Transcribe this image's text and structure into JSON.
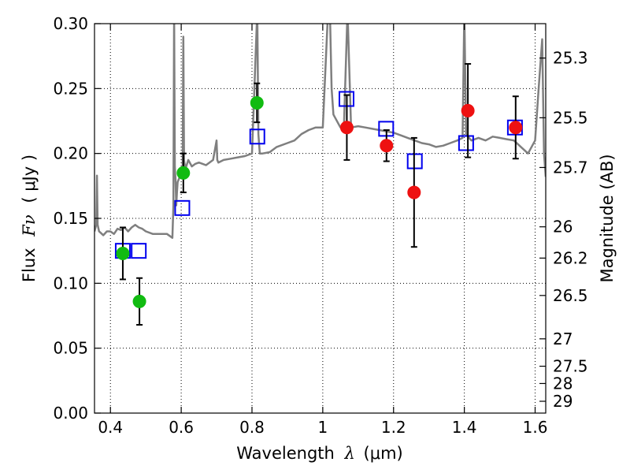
{
  "chart_data": {
    "type": "scatter",
    "title": "",
    "xlabel_text": "Wavelength",
    "xlabel_symbol": "λ",
    "xlabel_unit": "(μm)",
    "ylabel_text": "Flux",
    "ylabel_symbol": "Fν",
    "ylabel_unit": "( μJy )",
    "ylabel_right": "Magnitude (AB)",
    "xlim": [
      0.355,
      1.63
    ],
    "ylim": [
      0.0,
      0.3
    ],
    "xticks": [
      0.4,
      0.6,
      0.8,
      1.0,
      1.2,
      1.4,
      1.6
    ],
    "xtick_labels": [
      "0.4",
      "0.6",
      "0.8",
      "1",
      "1.2",
      "1.4",
      "1.6"
    ],
    "yticks": [
      0.0,
      0.05,
      0.1,
      0.15,
      0.2,
      0.25,
      0.3
    ],
    "ytick_labels": [
      "0.00",
      "0.05",
      "0.10",
      "0.15",
      "0.20",
      "0.25",
      "0.30"
    ],
    "right_ticks": [
      {
        "label": "25.3",
        "flux": 0.2735
      },
      {
        "label": "25.5",
        "flux": 0.2275
      },
      {
        "label": "25.7",
        "flux": 0.1892
      },
      {
        "label": "26",
        "flux": 0.1435
      },
      {
        "label": "26.2",
        "flux": 0.1194
      },
      {
        "label": "26.5",
        "flux": 0.0906
      },
      {
        "label": "27",
        "flux": 0.0572
      },
      {
        "label": "27.5",
        "flux": 0.0361
      },
      {
        "label": "28",
        "flux": 0.0228
      },
      {
        "label": "29",
        "flux": 0.0091
      }
    ],
    "grid": true,
    "colors": {
      "spectrum": "#7f7f7f",
      "green": "#11bb11",
      "red": "#ee1111",
      "model": "#0000ee",
      "errorbar": "#000000"
    },
    "series": [
      {
        "name": "spectrum",
        "kind": "line",
        "x": [
          0.355,
          0.36,
          0.362,
          0.364,
          0.368,
          0.372,
          0.38,
          0.39,
          0.4,
          0.41,
          0.42,
          0.43,
          0.44,
          0.45,
          0.46,
          0.47,
          0.48,
          0.49,
          0.5,
          0.52,
          0.54,
          0.56,
          0.575,
          0.578,
          0.58,
          0.582,
          0.584,
          0.586,
          0.588,
          0.59,
          0.6,
          0.604,
          0.606,
          0.608,
          0.612,
          0.62,
          0.63,
          0.64,
          0.65,
          0.66,
          0.67,
          0.69,
          0.7,
          0.702,
          0.705,
          0.72,
          0.74,
          0.76,
          0.78,
          0.8,
          0.815,
          0.818,
          0.822,
          0.83,
          0.85,
          0.87,
          0.9,
          0.92,
          0.94,
          0.96,
          0.98,
          1.0,
          1.015,
          1.02,
          1.025,
          1.03,
          1.05,
          1.06,
          1.07,
          1.08,
          1.1,
          1.12,
          1.14,
          1.16,
          1.18,
          1.2,
          1.22,
          1.24,
          1.26,
          1.28,
          1.3,
          1.32,
          1.34,
          1.36,
          1.38,
          1.395,
          1.4,
          1.405,
          1.41,
          1.42,
          1.44,
          1.46,
          1.48,
          1.5,
          1.52,
          1.54,
          1.56,
          1.58,
          1.6,
          1.61,
          1.62,
          1.625,
          1.63
        ],
        "y": [
          0.14,
          0.145,
          0.183,
          0.145,
          0.14,
          0.139,
          0.137,
          0.14,
          0.14,
          0.138,
          0.142,
          0.141,
          0.143,
          0.14,
          0.143,
          0.145,
          0.143,
          0.142,
          0.14,
          0.138,
          0.138,
          0.138,
          0.135,
          0.16,
          0.31,
          0.19,
          0.18,
          0.16,
          0.17,
          0.178,
          0.185,
          0.186,
          0.29,
          0.195,
          0.188,
          0.195,
          0.19,
          0.192,
          0.193,
          0.192,
          0.191,
          0.195,
          0.21,
          0.195,
          0.193,
          0.195,
          0.196,
          0.197,
          0.198,
          0.2,
          0.31,
          0.215,
          0.2,
          0.2,
          0.201,
          0.205,
          0.208,
          0.21,
          0.215,
          0.218,
          0.22,
          0.22,
          0.31,
          0.31,
          0.25,
          0.23,
          0.22,
          0.222,
          0.31,
          0.22,
          0.221,
          0.22,
          0.219,
          0.218,
          0.217,
          0.216,
          0.214,
          0.212,
          0.21,
          0.208,
          0.207,
          0.205,
          0.206,
          0.208,
          0.21,
          0.212,
          0.31,
          0.215,
          0.213,
          0.21,
          0.212,
          0.21,
          0.213,
          0.212,
          0.211,
          0.21,
          0.205,
          0.2,
          0.21,
          0.25,
          0.288,
          0.2,
          0.182
        ]
      },
      {
        "name": "green photometry",
        "kind": "points",
        "points": [
          {
            "x": 0.435,
            "y": 0.123,
            "err": 0.02
          },
          {
            "x": 0.482,
            "y": 0.086,
            "err": 0.018
          },
          {
            "x": 0.606,
            "y": 0.185,
            "err": 0.015
          },
          {
            "x": 0.814,
            "y": 0.239,
            "err": 0.015
          }
        ]
      },
      {
        "name": "red photometry",
        "kind": "points",
        "points": [
          {
            "x": 1.068,
            "y": 0.22,
            "err": 0.025
          },
          {
            "x": 1.18,
            "y": 0.206,
            "err": 0.012
          },
          {
            "x": 1.258,
            "y": 0.17,
            "err": 0.042
          },
          {
            "x": 1.41,
            "y": 0.233,
            "err": 0.036
          },
          {
            "x": 1.545,
            "y": 0.22,
            "err": 0.024
          }
        ]
      },
      {
        "name": "model squares",
        "kind": "squares",
        "points": [
          {
            "x": 0.435,
            "y": 0.125
          },
          {
            "x": 0.48,
            "y": 0.125
          },
          {
            "x": 0.603,
            "y": 0.158
          },
          {
            "x": 0.815,
            "y": 0.213
          },
          {
            "x": 1.067,
            "y": 0.242
          },
          {
            "x": 1.179,
            "y": 0.219
          },
          {
            "x": 1.26,
            "y": 0.194
          },
          {
            "x": 1.405,
            "y": 0.208
          },
          {
            "x": 1.543,
            "y": 0.22
          }
        ]
      }
    ]
  }
}
